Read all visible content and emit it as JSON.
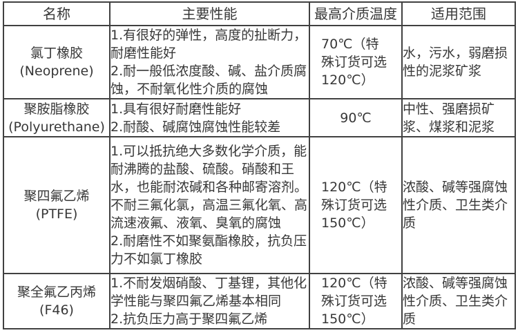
{
  "table": {
    "headers": [
      "名称",
      "主要性能",
      "最高介质温度",
      "适用范围"
    ],
    "rows": [
      {
        "name_cn": "氯丁橡胶",
        "name_en": "(Neoprene)",
        "performance": [
          "1.有很好的弹性，高度的扯断力，耐磨性能好",
          "2.耐一般低浓度酸、碱、盐介质腐蚀，不耐氧化性介质的腐蚀"
        ],
        "max_temp": "70℃（特殊订货可选120℃）",
        "application": "水，污水，弱磨损性的泥浆矿浆"
      },
      {
        "name_cn": "聚胺脂橡胶",
        "name_en": "(Polyurethane)",
        "performance": [
          "1.具有很好耐磨性能好",
          "2.耐酸、碱腐蚀腐蚀性能较差"
        ],
        "max_temp": "90℃",
        "application": "中性、强磨损矿浆、煤浆和泥浆"
      },
      {
        "name_cn": "聚四氟乙烯",
        "name_en": "(PTFE)",
        "performance": [
          "1.可以抵抗绝大多数化学介质，能耐沸腾的盐酸、硫酸。硝酸和王水，也能耐浓碱和各种邮寄溶剂。不耐三氟化氯，高温三氟化氧、高流速液氟、液氧、臭氧的腐蚀",
          "2.耐磨性不如聚氨酯橡胶，抗负压力不如氯丁橡胶"
        ],
        "max_temp": "120℃（特殊订货可选150℃）",
        "application": "浓酸、碱等强腐蚀性介质、卫生类介质"
      },
      {
        "name_cn": "聚全氟乙丙烯",
        "name_en": "(F46)",
        "performance": [
          "1.不耐发烟硝酸、丁基锂，其他化学性能与聚四氟乙烯基本相同",
          "2.抗负压力高于聚四氟乙烯"
        ],
        "max_temp": "120℃（特殊订货可选150℃）",
        "application": "浓酸、碱等强腐蚀性介质、卫生类介质"
      }
    ]
  },
  "colors": {
    "border": "#404040",
    "text": "#373737",
    "background": "#ffffff"
  }
}
